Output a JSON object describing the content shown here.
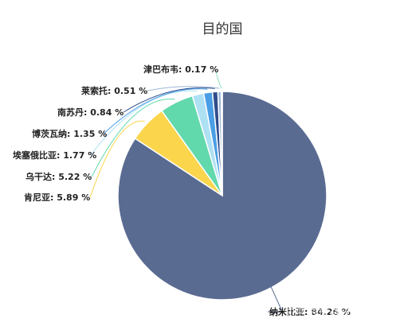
{
  "chart_data": {
    "type": "pie",
    "title": "目的国",
    "slices": [
      {
        "name": "纳米比亚",
        "value": 84.26,
        "label": "纳米比亚: 84.26 %",
        "color": "#5a6b92"
      },
      {
        "name": "肯尼亚",
        "value": 5.89,
        "label": "肯尼亚: 5.89 %",
        "color": "#fbd54c"
      },
      {
        "name": "乌干达",
        "value": 5.22,
        "label": "乌干达: 5.22 %",
        "color": "#62d8ad"
      },
      {
        "name": "埃塞俄比亚",
        "value": 1.77,
        "label": "埃塞俄比亚: 1.77 %",
        "color": "#aee0f4"
      },
      {
        "name": "博茨瓦纳",
        "value": 1.35,
        "label": "博茨瓦纳: 1.35 %",
        "color": "#4a9ee6"
      },
      {
        "name": "南苏丹",
        "value": 0.84,
        "label": "南苏丹: 0.84 %",
        "color": "#2f4d8c"
      },
      {
        "name": "莱索托",
        "value": 0.51,
        "label": "莱索托: 0.51 %",
        "color": "#9fb6d6"
      },
      {
        "name": "津巴布韦",
        "value": 0.17,
        "label": "津巴布韦: 0.17 %",
        "color": "#8fe0c4"
      }
    ]
  },
  "watermark": "知乎 @旅游行业资讯"
}
